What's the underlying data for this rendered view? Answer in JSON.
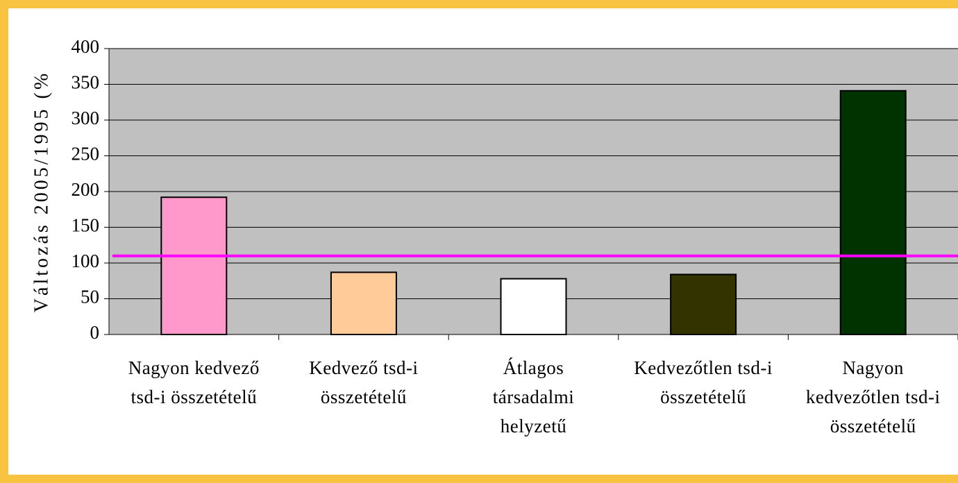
{
  "chart_data": {
    "type": "bar",
    "y_axis_label": "Változás 2005/1995 (%",
    "categories": [
      "Nagyon kedvező tsd-i összetételű",
      "Kedvező tsd-i összetételű",
      "Átlagos társadalmi helyzetű",
      "Kedvezőtlen tsd-i összetételű",
      "Nagyon kedvezőtlen tsd-i összetételű"
    ],
    "values": [
      192,
      87,
      78,
      84,
      341
    ],
    "colors": [
      "#ff99cc",
      "#ffcc99",
      "#ffffff",
      "#333300",
      "#003300"
    ],
    "reference_line": {
      "value": 110,
      "color": "#ff00ff"
    },
    "ylim": [
      0,
      400
    ],
    "yticks": [
      0,
      50,
      100,
      150,
      200,
      250,
      300,
      350,
      400
    ],
    "grid": true
  }
}
